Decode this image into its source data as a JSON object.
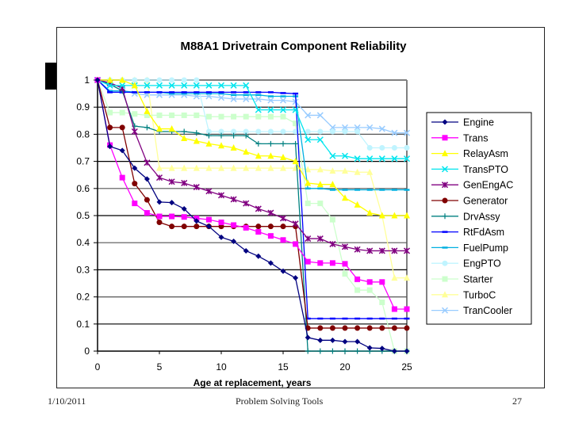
{
  "slide": {
    "title_fragment": "M",
    "footer": {
      "date": "1/10/2011",
      "center": "Problem Solving Tools",
      "page": "27"
    }
  },
  "chart_data": {
    "type": "line",
    "title": "M88A1 Drivetrain Component Reliability",
    "xlabel": "Age at replacement, years",
    "ylabel": "",
    "xlim": [
      0,
      25
    ],
    "ylim": [
      0,
      1
    ],
    "x_ticks": [
      "0",
      "5",
      "10",
      "15",
      "20",
      "25"
    ],
    "y_ticks": [
      "0",
      "0.1",
      "0.2",
      "0.3",
      "0.4",
      "0.5",
      "0.6",
      "0.7",
      "0.8",
      "0.9",
      "1"
    ],
    "grid": "horizontal",
    "legend_position": "right",
    "x": [
      0,
      1,
      2,
      3,
      4,
      5,
      6,
      7,
      8,
      9,
      10,
      11,
      12,
      13,
      14,
      15,
      16,
      17,
      18,
      19,
      20,
      21,
      22,
      23,
      24,
      25
    ],
    "series": [
      {
        "name": "Engine",
        "color": "#000080",
        "marker": "diamond",
        "values": [
          1,
          0.755,
          0.74,
          0.675,
          0.635,
          0.55,
          0.548,
          0.525,
          0.48,
          0.46,
          0.42,
          0.405,
          0.37,
          0.35,
          0.325,
          0.295,
          0.27,
          0.05,
          0.04,
          0.04,
          0.035,
          0.035,
          0.012,
          0.01,
          0,
          0
        ]
      },
      {
        "name": "Trans",
        "color": "#FF00FF",
        "marker": "square",
        "values": [
          1,
          0.76,
          0.64,
          0.545,
          0.51,
          0.497,
          0.497,
          0.495,
          0.49,
          0.485,
          0.475,
          0.465,
          0.455,
          0.44,
          0.425,
          0.41,
          0.395,
          0.33,
          0.325,
          0.325,
          0.322,
          0.265,
          0.255,
          0.255,
          0.155,
          0.155
        ]
      },
      {
        "name": "RelayAsm",
        "color": "#FFFF00",
        "marker": "triangle",
        "values": [
          1,
          1,
          1,
          0.98,
          0.885,
          0.82,
          0.82,
          0.785,
          0.775,
          0.765,
          0.758,
          0.75,
          0.735,
          0.72,
          0.72,
          0.715,
          0.7,
          0.62,
          0.615,
          0.615,
          0.565,
          0.54,
          0.51,
          0.5,
          0.5,
          0.5
        ]
      },
      {
        "name": "TransPTO",
        "color": "#00E5EE",
        "marker": "x",
        "values": [
          1,
          0.98,
          0.98,
          0.98,
          0.98,
          0.98,
          0.98,
          0.98,
          0.98,
          0.98,
          0.98,
          0.98,
          0.98,
          0.89,
          0.89,
          0.89,
          0.89,
          0.78,
          0.78,
          0.72,
          0.72,
          0.71,
          0.71,
          0.71,
          0.71,
          0.71
        ]
      },
      {
        "name": "GenEngAC",
        "color": "#800080",
        "marker": "asterisk",
        "values": [
          1,
          0.99,
          0.97,
          0.81,
          0.695,
          0.64,
          0.625,
          0.62,
          0.605,
          0.59,
          0.575,
          0.56,
          0.545,
          0.525,
          0.51,
          0.49,
          0.47,
          0.415,
          0.415,
          0.395,
          0.385,
          0.375,
          0.37,
          0.37,
          0.37,
          0.37
        ]
      },
      {
        "name": "Generator",
        "color": "#800000",
        "marker": "circle",
        "values": [
          1,
          0.825,
          0.825,
          0.618,
          0.558,
          0.475,
          0.46,
          0.46,
          0.46,
          0.46,
          0.46,
          0.46,
          0.46,
          0.46,
          0.46,
          0.46,
          0.46,
          0.085,
          0.085,
          0.085,
          0.085,
          0.085,
          0.085,
          0.085,
          0.085,
          0.085
        ]
      },
      {
        "name": "DrvAssy",
        "color": "#008080",
        "marker": "plus",
        "values": [
          1,
          0.985,
          0.96,
          0.83,
          0.825,
          0.81,
          0.81,
          0.81,
          0.805,
          0.795,
          0.795,
          0.795,
          0.795,
          0.765,
          0.765,
          0.765,
          0.765,
          0,
          0,
          0,
          0,
          0,
          0,
          0,
          0,
          0
        ]
      },
      {
        "name": "RtFdAsm",
        "color": "#0000FF",
        "marker": "dash",
        "values": [
          1,
          0.955,
          0.955,
          0.955,
          0.955,
          0.955,
          0.955,
          0.955,
          0.955,
          0.955,
          0.955,
          0.955,
          0.955,
          0.955,
          0.955,
          0.952,
          0.95,
          0.12,
          0.12,
          0.12,
          0.12,
          0.12,
          0.12,
          0.12,
          0.12,
          0.12
        ]
      },
      {
        "name": "FuelPump",
        "color": "#00B0E0",
        "marker": "dash",
        "values": [
          1,
          0.96,
          0.96,
          0.955,
          0.955,
          0.955,
          0.95,
          0.95,
          0.95,
          0.95,
          0.95,
          0.945,
          0.945,
          0.945,
          0.94,
          0.94,
          0.94,
          0.6,
          0.6,
          0.595,
          0.595,
          0.595,
          0.595,
          0.595,
          0.595,
          0.595
        ]
      },
      {
        "name": "EngPTO",
        "color": "#C0F4FF",
        "marker": "circle",
        "values": [
          1,
          1,
          1,
          1,
          1,
          1,
          1,
          1,
          1,
          0.81,
          0.81,
          0.81,
          0.81,
          0.81,
          0.81,
          0.81,
          0.81,
          0.81,
          0.81,
          0.81,
          0.81,
          0.81,
          0.75,
          0.75,
          0.75,
          0.75
        ]
      },
      {
        "name": "Starter",
        "color": "#CCFFCC",
        "marker": "square",
        "values": [
          1,
          0.88,
          0.88,
          0.875,
          0.87,
          0.87,
          0.87,
          0.87,
          0.87,
          0.865,
          0.865,
          0.865,
          0.865,
          0.865,
          0.865,
          0.865,
          0.84,
          0.545,
          0.545,
          0.485,
          0.285,
          0.225,
          0.225,
          0.18,
          0,
          0
        ]
      },
      {
        "name": "TurboC",
        "color": "#FFFF99",
        "marker": "triangle",
        "values": [
          1,
          1,
          1,
          1,
          1,
          0.675,
          0.675,
          0.675,
          0.675,
          0.675,
          0.675,
          0.675,
          0.675,
          0.675,
          0.675,
          0.675,
          0.675,
          0.67,
          0.67,
          0.665,
          0.665,
          0.66,
          0.66,
          0.5,
          0.27,
          0.27
        ]
      },
      {
        "name": "TranCooler",
        "color": "#99CCFF",
        "marker": "x",
        "values": [
          1,
          0.985,
          0.96,
          0.95,
          0.945,
          0.945,
          0.945,
          0.945,
          0.94,
          0.94,
          0.935,
          0.93,
          0.93,
          0.93,
          0.925,
          0.925,
          0.92,
          0.87,
          0.87,
          0.825,
          0.825,
          0.825,
          0.825,
          0.82,
          0.805,
          0.805
        ]
      }
    ]
  }
}
